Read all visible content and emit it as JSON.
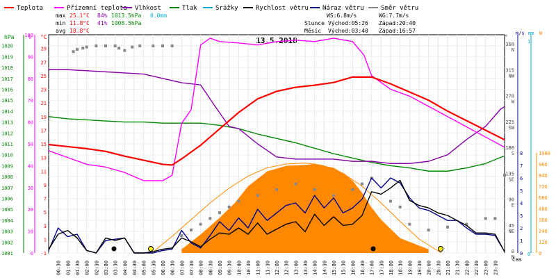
{
  "chart_data": {
    "type": "line",
    "title": "13.5.2018",
    "xlabel": "čas",
    "legend": [
      {
        "name": "Teplota",
        "color": "#ff0000"
      },
      {
        "name": "Přízemní teplota",
        "color": "#ff00ff"
      },
      {
        "name": "Vlhkost",
        "color": "#8800aa"
      },
      {
        "name": "Tlak",
        "color": "#008800"
      },
      {
        "name": "Srážky",
        "color": "#00aacc"
      },
      {
        "name": "Rychlost větru",
        "color": "#000000"
      },
      {
        "name": "Náraz větru",
        "color": "#000088"
      },
      {
        "name": "Směr větru",
        "color": "#888888"
      }
    ],
    "stats": {
      "max": {
        "label": "max",
        "temp": "25.1°C",
        "hum": "84%",
        "press": "1013.5hPa",
        "rain": "0.0mm"
      },
      "min": {
        "label": "min",
        "temp": "11.8°C",
        "hum": "41%",
        "press": "1008.5hPa"
      },
      "avg": {
        "label": "avg",
        "temp": "18.8°C"
      },
      "ws": "WS:6.8m/s",
      "wg": "WG:7.7m/s",
      "sun": {
        "label": "Slunce",
        "rise": "Východ:05:26",
        "set": "Západ:20:40"
      },
      "moon": {
        "label": "Měsíc",
        "rise": "Východ:03:40",
        "set": "Západ:16:57"
      }
    },
    "axes": {
      "hpa": {
        "unit": "hPa",
        "min": 1001,
        "max": 1021,
        "ticks": [
          "1001",
          "1002",
          "1003",
          "1004",
          "1005",
          "1006",
          "1007",
          "1008",
          "1009",
          "1010",
          "1011",
          "1012",
          "1013",
          "1014",
          "1015",
          "1016",
          "1017",
          "1018",
          "1019",
          "1020"
        ]
      },
      "pct": {
        "unit": "%",
        "min": 0,
        "max": 100,
        "ticks": [
          "0",
          "10",
          "20",
          "30",
          "40",
          "50",
          "60",
          "70",
          "80",
          "90",
          "100"
        ]
      },
      "degc": {
        "unit": "°C",
        "min": -1,
        "max": 31,
        "ticks": [
          "-1",
          "1",
          "3",
          "5",
          "7",
          "9",
          "11",
          "13",
          "15",
          "17",
          "19",
          "21",
          "23",
          "25",
          "27",
          "29"
        ]
      },
      "dir": {
        "unit": "°",
        "ticks": [
          {
            "deg": 0,
            "label": "0",
            "cardinal": "N"
          },
          {
            "deg": 45,
            "label": "45",
            "cardinal": "NE"
          },
          {
            "deg": 90,
            "label": "90",
            "cardinal": "E"
          },
          {
            "deg": 135,
            "label": "135",
            "cardinal": "SE"
          },
          {
            "deg": 180,
            "label": "180",
            "cardinal": "S"
          },
          {
            "deg": 225,
            "label": "225",
            "cardinal": "SW"
          },
          {
            "deg": 270,
            "label": "270",
            "cardinal": "W"
          },
          {
            "deg": 315,
            "label": "315",
            "cardinal": "NW"
          },
          {
            "deg": 360,
            "label": "360",
            "cardinal": "N"
          }
        ]
      },
      "ms": {
        "unit": "m/s",
        "min": 0,
        "max": 8,
        "ticks": [
          "0",
          "1",
          "2",
          "3",
          "4",
          "5",
          "6",
          "7",
          "8"
        ]
      },
      "mm": {
        "unit": "mm",
        "top": "1",
        "bottom": "0"
      },
      "w": {
        "unit": "W",
        "min": 0,
        "max": 1080,
        "ticks": [
          "0",
          "120",
          "240",
          "360",
          "480",
          "600",
          "720",
          "840",
          "960",
          "1080"
        ]
      }
    },
    "x_ticks": [
      "00:30",
      "01:00",
      "01:30",
      "02:00",
      "02:30",
      "03:00",
      "03:30",
      "04:00",
      "04:30",
      "05:00",
      "05:30",
      "06:00",
      "06:30",
      "07:00",
      "07:30",
      "08:00",
      "08:30",
      "09:00",
      "09:30",
      "10:00",
      "10:30",
      "11:00",
      "11:30",
      "12:00",
      "12:30",
      "13:00",
      "13:30",
      "14:00",
      "14:30",
      "15:00",
      "15:30",
      "16:00",
      "16:30",
      "17:00",
      "17:30",
      "18:00",
      "18:30",
      "19:00",
      "19:30",
      "20:00",
      "20:30",
      "21:00",
      "21:30",
      "22:00",
      "22:30",
      "23:00",
      "23:30"
    ],
    "series": [
      {
        "name": "Teplota",
        "axis": "degc",
        "color": "#ff0000",
        "x": [
          0.0,
          1.0,
          2.0,
          3.0,
          4.0,
          5.0,
          6.0,
          6.5,
          7.0,
          8.0,
          9.0,
          10.0,
          11.0,
          12.0,
          13.0,
          14.0,
          15.0,
          16.0,
          17.0,
          18.0,
          19.0,
          20.0,
          21.0,
          22.0,
          23.0,
          24.0
        ],
        "y": [
          14.9,
          14.6,
          14.3,
          13.9,
          13.2,
          12.6,
          12.0,
          11.9,
          12.8,
          14.8,
          17.2,
          19.6,
          21.6,
          22.7,
          23.3,
          23.6,
          24.0,
          24.8,
          24.8,
          23.8,
          22.6,
          21.4,
          19.8,
          18.4,
          17.0,
          15.6
        ]
      },
      {
        "name": "Přízemní teplota",
        "axis": "degc",
        "color": "#ff00ff",
        "x": [
          0.0,
          1.0,
          2.0,
          3.0,
          4.0,
          5.0,
          6.0,
          6.5,
          7.0,
          7.5,
          8.0,
          8.5,
          9.0,
          10.0,
          11.0,
          12.0,
          13.0,
          14.0,
          15.0,
          16.0,
          16.6,
          17.0,
          18.0,
          19.0,
          20.0,
          21.0,
          22.0,
          23.0,
          24.0
        ],
        "y": [
          14.0,
          13.0,
          12.0,
          11.6,
          10.8,
          9.6,
          9.6,
          10.4,
          18.0,
          20.0,
          29.5,
          30.5,
          30.0,
          29.8,
          29.5,
          30.0,
          30.2,
          30.0,
          30.5,
          30.0,
          28.0,
          25.0,
          23.0,
          22.0,
          20.5,
          19.0,
          17.5,
          16.0,
          14.5
        ]
      },
      {
        "name": "Vlhkost",
        "axis": "pct",
        "color": "#8800aa",
        "x": [
          0.0,
          1.0,
          2.0,
          3.0,
          4.0,
          5.0,
          6.0,
          7.0,
          8.0,
          8.7,
          9.5,
          10.0,
          11.0,
          12.0,
          13.0,
          14.0,
          15.0,
          16.0,
          17.0,
          18.0,
          19.0,
          20.0,
          21.0,
          22.0,
          23.0,
          23.8,
          24.0
        ],
        "y": [
          84,
          84,
          83.5,
          83,
          82.5,
          82,
          80,
          78,
          77,
          68,
          58,
          57,
          50,
          44,
          43,
          43,
          43,
          42,
          42,
          41,
          41,
          42,
          45,
          52,
          58,
          66,
          67
        ]
      },
      {
        "name": "Tlak",
        "axis": "hpa",
        "color": "#008800",
        "x": [
          0.0,
          1.0,
          2.0,
          3.0,
          4.0,
          5.0,
          6.0,
          7.0,
          8.0,
          9.0,
          10.0,
          11.0,
          12.0,
          13.0,
          14.0,
          15.0,
          16.0,
          17.0,
          18.0,
          19.0,
          20.0,
          21.0,
          22.0,
          23.0,
          24.0
        ],
        "y": [
          1013.5,
          1013.3,
          1013.2,
          1013.1,
          1013.0,
          1013.0,
          1012.9,
          1012.9,
          1012.9,
          1012.7,
          1012.4,
          1011.9,
          1011.5,
          1011.1,
          1010.6,
          1010.1,
          1009.7,
          1009.3,
          1009.0,
          1008.8,
          1008.5,
          1008.5,
          1008.8,
          1009.2,
          1009.9
        ]
      },
      {
        "name": "Rychlost větru",
        "axis": "ms",
        "color": "#000000",
        "x": [
          0.0,
          0.5,
          1.0,
          1.5,
          2.0,
          2.5,
          3.0,
          3.5,
          4.0,
          4.5,
          5.0,
          5.5,
          6.0,
          6.5,
          7.0,
          7.5,
          8.0,
          8.5,
          9.0,
          9.5,
          10.0,
          10.5,
          11.0,
          11.5,
          12.0,
          12.5,
          13.0,
          13.5,
          14.0,
          14.5,
          15.0,
          15.5,
          16.0,
          16.5,
          17.0,
          17.5,
          18.0,
          18.5,
          19.0,
          19.5,
          20.0,
          20.5,
          21.0,
          21.5,
          22.0,
          22.5,
          23.0,
          23.5,
          24.0
        ],
        "y": [
          0.3,
          1.5,
          1.8,
          1.2,
          0.2,
          0.0,
          1.2,
          1.0,
          1.2,
          0.0,
          0.0,
          0.1,
          0.3,
          0.4,
          1.2,
          0.9,
          0.5,
          1.1,
          1.6,
          1.5,
          2.0,
          1.5,
          2.4,
          1.5,
          1.9,
          2.3,
          2.5,
          1.7,
          3.1,
          2.2,
          2.9,
          2.2,
          2.3,
          3.0,
          4.9,
          4.7,
          5.2,
          5.8,
          4.2,
          3.8,
          3.6,
          3.2,
          3.0,
          2.6,
          2.2,
          1.6,
          1.6,
          1.5,
          0.1
        ]
      },
      {
        "name": "Náraz větru",
        "axis": "ms",
        "color": "#000088",
        "x": [
          0.0,
          0.5,
          1.0,
          1.5,
          2.0,
          2.5,
          3.0,
          3.5,
          4.0,
          4.5,
          5.0,
          5.5,
          6.0,
          6.5,
          7.0,
          7.5,
          8.0,
          8.5,
          9.0,
          9.5,
          10.0,
          10.5,
          11.0,
          11.5,
          12.0,
          12.5,
          13.0,
          13.5,
          14.0,
          14.5,
          15.0,
          15.5,
          16.0,
          16.5,
          17.0,
          17.5,
          18.0,
          18.5,
          19.0,
          19.5,
          20.0,
          20.5,
          21.0,
          21.5,
          22.0,
          22.5,
          23.0,
          23.5,
          24.0
        ],
        "y": [
          0.2,
          2.0,
          1.3,
          1.5,
          0.2,
          0.0,
          1.0,
          1.1,
          1.2,
          0.0,
          0.0,
          0.0,
          0.2,
          0.3,
          1.8,
          0.8,
          0.4,
          1.4,
          2.5,
          1.8,
          2.8,
          2.0,
          3.5,
          2.6,
          3.2,
          3.8,
          4.0,
          3.2,
          4.6,
          3.6,
          4.4,
          3.2,
          3.6,
          4.3,
          6.0,
          5.2,
          6.0,
          5.6,
          4.4,
          3.6,
          3.4,
          3.0,
          2.6,
          2.6,
          2.0,
          1.5,
          1.5,
          1.4,
          0.1
        ]
      },
      {
        "name": "Směr větru",
        "axis": "dir",
        "color": "#888888",
        "x": [
          1.3,
          1.5,
          1.8,
          2.0,
          2.5,
          3.0,
          3.5,
          3.7,
          4.0,
          4.4,
          4.8,
          5.5,
          6.0,
          6.5,
          7.0,
          7.5,
          8.0,
          8.5,
          9.0,
          9.5,
          10.0,
          11.0,
          12.0,
          13.0,
          14.0,
          15.0,
          16.0,
          16.5,
          17.0,
          18.0,
          18.5,
          19.0,
          20.0,
          21.0,
          22.0,
          23.0,
          23.5,
          24.0
        ],
        "y": [
          350,
          354,
          356,
          358,
          360,
          360,
          360,
          356,
          352,
          358,
          360,
          360,
          360,
          360,
          30,
          40,
          50,
          60,
          70,
          80,
          90,
          100,
          110,
          120,
          110,
          100,
          110,
          120,
          130,
          90,
          80,
          50,
          40,
          45,
          50,
          60,
          60,
          135
        ]
      },
      {
        "name": "Sluneční záření",
        "axis": "w",
        "color": "#ff8800",
        "fill": true,
        "x": [
          7.0,
          8.0,
          9.0,
          9.8,
          10.5,
          11.5,
          12.5,
          13.5,
          14.0,
          14.5,
          15.0,
          15.5,
          16.0,
          16.5,
          17.0,
          17.5,
          18.0,
          18.5,
          19.0,
          19.5,
          20.0
        ],
        "y": [
          40,
          200,
          380,
          540,
          720,
          880,
          940,
          950,
          960,
          940,
          920,
          860,
          780,
          650,
          490,
          360,
          260,
          160,
          120,
          80,
          40
        ]
      },
      {
        "name": "Teoretické záření",
        "axis": "w",
        "color": "#ff8800",
        "x": [
          5.43,
          6.5,
          7.5,
          8.5,
          9.5,
          10.5,
          11.5,
          12.5,
          13.5,
          14.0,
          14.5,
          15.5,
          16.5,
          17.5,
          18.5,
          19.5,
          20.67
        ],
        "y": [
          0,
          180,
          360,
          540,
          700,
          830,
          920,
          960,
          970,
          960,
          940,
          860,
          720,
          540,
          340,
          150,
          0
        ]
      }
    ]
  }
}
